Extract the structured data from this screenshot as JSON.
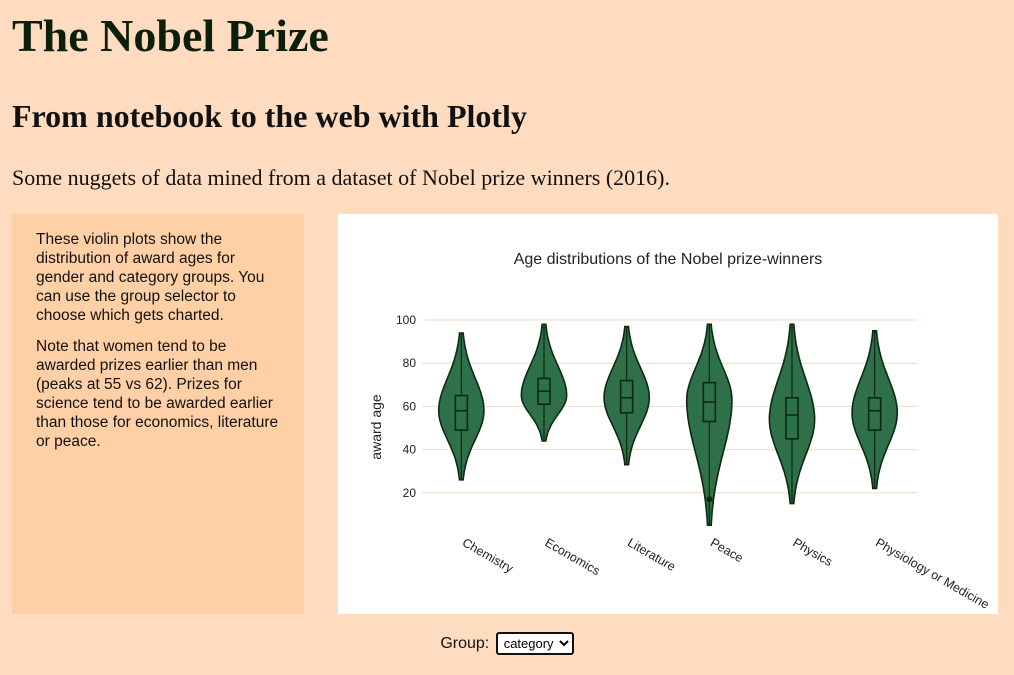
{
  "header": {
    "title": "The Nobel Prize",
    "subtitle": "From notebook to the web with Plotly",
    "intro": "Some nuggets of data mined from a dataset of Nobel prize winners (2016)."
  },
  "info": {
    "paragraphs": [
      "These violin plots show the distribution of award ages for gender and category groups. You can use the group selector to choose which gets charted.",
      "Note that women tend to be awarded prizes earlier than men (peaks at 55 vs 62). Prizes for science tend to be awarded earlier than those for economics, literature or peace."
    ]
  },
  "controls": {
    "group_label": "Group:",
    "group_selected": "category"
  },
  "colors": {
    "violin_fill": "#2e7048",
    "violin_line": "#0b2a12",
    "gridline": "#f2dcc6",
    "page_bg": "#ffdcc0",
    "panel_bg": "#ffcfa5"
  },
  "chart_data": {
    "type": "violin",
    "title": "Age distributions of the Nobel prize-winners",
    "xlabel": "",
    "ylabel": "award age",
    "ylim": [
      0,
      100
    ],
    "yticks": [
      20,
      40,
      60,
      80,
      100
    ],
    "grid": true,
    "categories": [
      "Chemistry",
      "Economics",
      "Literature",
      "Peace",
      "Physics",
      "Physiology or Medicine"
    ],
    "violins": [
      {
        "category": "Chemistry",
        "min": 26,
        "max": 94,
        "q1": 49,
        "median": 58,
        "q3": 65,
        "mode": 58,
        "outliers": []
      },
      {
        "category": "Economics",
        "min": 44,
        "max": 98,
        "q1": 61,
        "median": 67,
        "q3": 73,
        "mode": 65,
        "outliers": []
      },
      {
        "category": "Literature",
        "min": 33,
        "max": 97,
        "q1": 57,
        "median": 64,
        "q3": 72,
        "mode": 64,
        "outliers": []
      },
      {
        "category": "Peace",
        "min": 5,
        "max": 98,
        "q1": 53,
        "median": 62,
        "q3": 71,
        "mode": 63,
        "outliers": [
          17
        ]
      },
      {
        "category": "Physics",
        "min": 15,
        "max": 98,
        "q1": 45,
        "median": 56,
        "q3": 64,
        "mode": 54,
        "outliers": []
      },
      {
        "category": "Physiology or Medicine",
        "min": 22,
        "max": 95,
        "q1": 49,
        "median": 58,
        "q3": 64,
        "mode": 57,
        "outliers": []
      }
    ]
  }
}
